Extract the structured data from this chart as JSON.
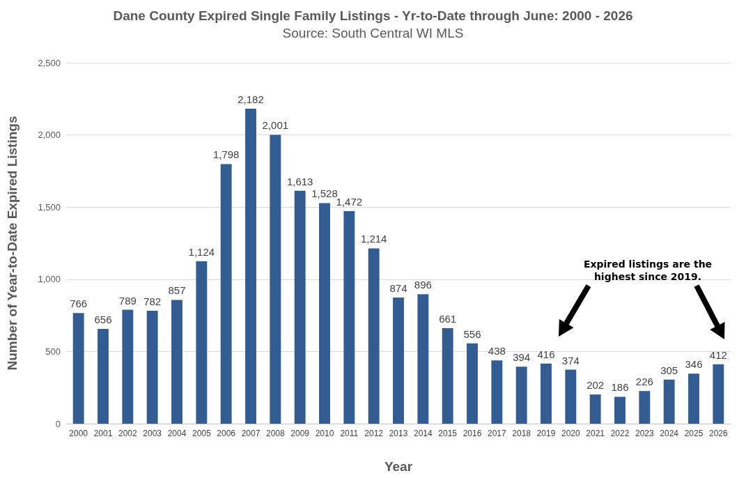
{
  "chart_data": {
    "type": "bar",
    "title": "Dane County Expired Single Family Listings - Yr-to-Date through June: 2000 - 2026",
    "subtitle": "Source: South Central WI MLS",
    "xlabel": "Year",
    "ylabel": "Number of Year-to-Date Expired Listings",
    "categories": [
      "2000",
      "2001",
      "2002",
      "2003",
      "2004",
      "2005",
      "2006",
      "2007",
      "2008",
      "2009",
      "2010",
      "2011",
      "2012",
      "2013",
      "2014",
      "2015",
      "2016",
      "2017",
      "2018",
      "2019",
      "2020",
      "2021",
      "2022",
      "2023",
      "2024",
      "2025",
      "2026"
    ],
    "values": [
      766,
      656,
      789,
      782,
      857,
      1124,
      1798,
      2182,
      2001,
      1613,
      1528,
      1472,
      1214,
      874,
      896,
      661,
      556,
      438,
      394,
      416,
      374,
      202,
      186,
      226,
      305,
      346,
      412
    ],
    "value_labels": [
      "766",
      "656",
      "789",
      "782",
      "857",
      "1,124",
      "1,798",
      "2,182",
      "2,001",
      "1,613",
      "1,528",
      "1,472",
      "1,214",
      "874",
      "896",
      "661",
      "556",
      "438",
      "394",
      "416",
      "374",
      "202",
      "186",
      "226",
      "305",
      "346",
      "412"
    ],
    "color": "#335d92",
    "ylim": [
      0,
      2500
    ],
    "yticks": [
      0,
      {
        "value": 500,
        "label": "500"
      },
      {
        "value": 1000,
        "label": "1,000"
      },
      {
        "value": 1500,
        "label": "1,500"
      },
      {
        "value": 2000,
        "label": "2,000"
      },
      {
        "value": 2500,
        "label": "2,500"
      }
    ],
    "grid": "y",
    "annotations": [
      "Expired listings are the highest since 2019."
    ]
  }
}
